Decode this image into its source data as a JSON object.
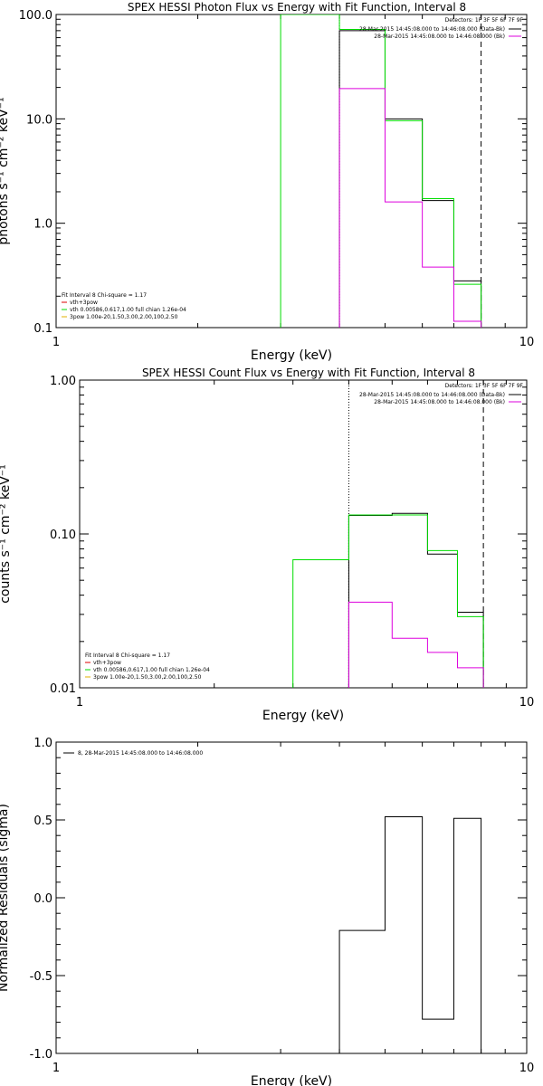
{
  "colors": {
    "black": "#000000",
    "green": "#00dd00",
    "magenta": "#dd00dd",
    "red": "#dd0000",
    "orange": "#e0b000"
  },
  "chart_data": [
    {
      "type": "line",
      "title": "SPEX HESSI Photon Flux vs Energy with Fit Function, Interval 8",
      "xlabel": "Energy (keV)",
      "ylabel": "photons s⁻¹ cm⁻² keV⁻¹",
      "xscale": "log",
      "yscale": "log",
      "xlim": [
        1,
        10
      ],
      "ylim": [
        0.1,
        100
      ],
      "xticklabels": [
        "1",
        "10"
      ],
      "yticks": [
        0.1,
        1,
        10,
        100
      ],
      "yticklabels": [
        "0.1",
        "1.0",
        "10.0",
        "100.0"
      ],
      "legend_header": "Detectors: 1F 3F 5F 6F 7F 9F",
      "legend_topright": [
        {
          "label": "28-Mar-2015 14:45:08.000 to 14:46:08.000 (Data-Bk)",
          "color": "black"
        },
        {
          "label": "28-Mar-2015 14:45:08.000 to 14:46:08.000 (Bk)",
          "color": "magenta"
        }
      ],
      "legend_bottomleft": [
        {
          "label": "Fit Interval 8   Chi-square = 1.17",
          "color": "none"
        },
        {
          "label": "vth+3pow",
          "color": "red"
        },
        {
          "label": "vth 0.00586,0.617,1.00  full chian 1.26e-04",
          "color": "green"
        },
        {
          "label": "3pow 1.00e-20,1.50,3.00,2.00,100,2.50",
          "color": "orange"
        }
      ],
      "vlines": [
        {
          "x": 4.0,
          "style": "dotted"
        },
        {
          "x": 8.0,
          "style": "dashed"
        }
      ],
      "series": [
        {
          "color": "black",
          "edges": [
            4.0,
            5.0,
            6.0,
            7.0,
            8.0
          ],
          "values": [
            70,
            10,
            1.65,
            0.28
          ]
        },
        {
          "color": "green",
          "edges": [
            3.0,
            4.0,
            5.0,
            6.0,
            7.0,
            8.0
          ],
          "values": [
            100,
            72,
            9.6,
            1.72,
            0.26
          ]
        },
        {
          "color": "magenta",
          "edges": [
            4.0,
            5.0,
            6.0,
            7.0,
            8.0
          ],
          "values": [
            19.5,
            1.6,
            0.38,
            0.115
          ]
        }
      ]
    },
    {
      "type": "line",
      "title": "SPEX HESSI Count Flux vs Energy with Fit Function, Interval 8",
      "xlabel": "Energy (keV)",
      "ylabel": "counts s⁻¹ cm⁻² keV⁻¹",
      "xscale": "log",
      "yscale": "log",
      "xlim": [
        1,
        10
      ],
      "ylim": [
        0.01,
        1
      ],
      "xticklabels": [
        "1",
        "10"
      ],
      "yticks": [
        0.01,
        0.1,
        1
      ],
      "yticklabels": [
        "0.01",
        "0.10",
        "1.00"
      ],
      "legend_header": "Detectors: 1F 3F 5F 6F 7F 9F",
      "legend_topright": [
        {
          "label": "28-Mar-2015 14:45:08.000 to 14:46:08.000 (Data-Bk)",
          "color": "black"
        },
        {
          "label": "28-Mar-2015 14:45:08.000 to 14:46:08.000 (Bk)",
          "color": "magenta"
        }
      ],
      "legend_bottomleft": [
        {
          "label": "Fit Interval 8   Chi-square = 1.17",
          "color": "none"
        },
        {
          "label": "vth+3pow",
          "color": "red"
        },
        {
          "label": "vth 0.00586,0.617,1.00  full chian 1.26e-04",
          "color": "green"
        },
        {
          "label": "3pow 1.00e-20,1.50,3.00,2.00,100,2.50",
          "color": "orange"
        }
      ],
      "vlines": [
        {
          "x": 4.0,
          "style": "dotted"
        },
        {
          "x": 8.0,
          "style": "dashed"
        }
      ],
      "series": [
        {
          "color": "black",
          "edges": [
            4.0,
            5.0,
            6.0,
            7.0,
            8.0
          ],
          "values": [
            0.132,
            0.136,
            0.074,
            0.031
          ]
        },
        {
          "color": "green",
          "edges": [
            3.0,
            4.0,
            5.0,
            6.0,
            7.0,
            8.0
          ],
          "values": [
            0.068,
            0.133,
            0.133,
            0.078,
            0.029
          ]
        },
        {
          "color": "magenta",
          "edges": [
            4.0,
            5.0,
            6.0,
            7.0,
            8.0
          ],
          "values": [
            0.036,
            0.021,
            0.017,
            0.0135
          ]
        }
      ]
    },
    {
      "type": "line",
      "title": "",
      "xlabel": "Energy (keV)",
      "ylabel": "Normalized Residuals (sigma)",
      "xscale": "log",
      "yscale": "linear",
      "xlim": [
        1,
        10
      ],
      "ylim": [
        -1,
        1
      ],
      "xticklabels": [
        "1",
        "10"
      ],
      "yticks": [
        -1,
        -0.5,
        0,
        0.5,
        1
      ],
      "yticklabels": [
        "-1.0",
        "-0.5",
        "0.0",
        "0.5",
        "1.0"
      ],
      "legend_header": "",
      "legend_topleft": [
        {
          "label": "8, 28-Mar-2015 14:45:08.000 to 14:46:08.000",
          "color": "black"
        }
      ],
      "series": [
        {
          "color": "black",
          "edges": [
            4.0,
            5.0,
            6.0,
            7.0,
            8.0
          ],
          "values": [
            -0.21,
            0.52,
            -0.78,
            0.51
          ],
          "bars": true
        }
      ]
    }
  ]
}
